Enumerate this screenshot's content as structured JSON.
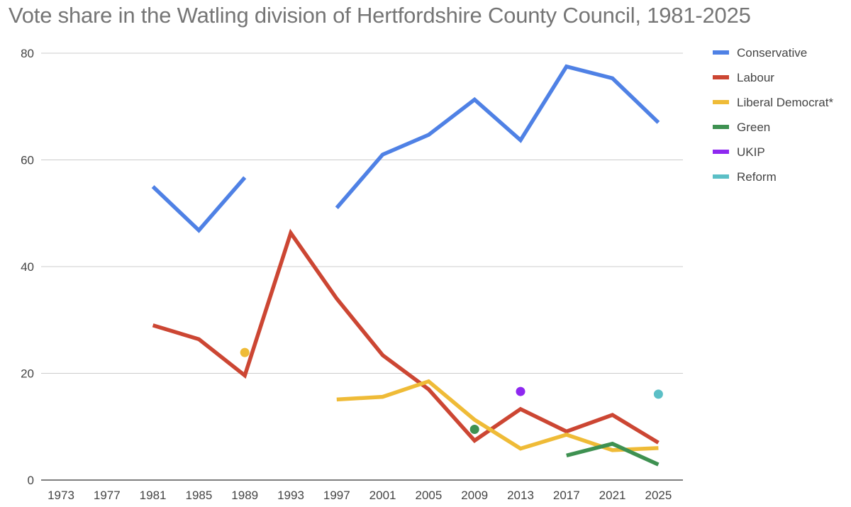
{
  "chart_data": {
    "type": "line",
    "title": "Vote share in the Watling division of Hertfordshire County Council, 1981-2025",
    "xlabel": "",
    "ylabel": "",
    "categories": [
      "1973",
      "1977",
      "1981",
      "1985",
      "1989",
      "1993",
      "1997",
      "2001",
      "2005",
      "2009",
      "2013",
      "2017",
      "2021",
      "2025"
    ],
    "ylim": [
      0,
      80
    ],
    "yticks": [
      0,
      20,
      40,
      60,
      80
    ],
    "grid": true,
    "legend_position": "right",
    "series": [
      {
        "name": "Conservative",
        "color": "#4f81e5",
        "values": [
          null,
          null,
          55,
          46.8,
          56.7,
          null,
          51,
          61,
          64.7,
          71.3,
          63.7,
          77.5,
          75.3,
          67
        ]
      },
      {
        "name": "Labour",
        "color": "#cc4633",
        "values": [
          null,
          null,
          29,
          26.4,
          19.6,
          46.3,
          34,
          23.4,
          17,
          7.4,
          13.3,
          9.1,
          12.2,
          7
        ]
      },
      {
        "name": "Liberal Democrat*",
        "color": "#efbb37",
        "values": [
          null,
          null,
          null,
          null,
          23.9,
          null,
          15.1,
          15.6,
          18.5,
          11.3,
          5.9,
          8.5,
          5.6,
          6
        ]
      },
      {
        "name": "Green",
        "color": "#3e9151",
        "values": [
          null,
          null,
          null,
          null,
          null,
          null,
          null,
          null,
          null,
          9.5,
          null,
          4.6,
          6.8,
          2.9
        ]
      },
      {
        "name": "UKIP",
        "color": "#8e28f0",
        "values": [
          null,
          null,
          null,
          null,
          null,
          null,
          null,
          null,
          null,
          null,
          16.6,
          null,
          null,
          null
        ]
      },
      {
        "name": "Reform",
        "color": "#5bbfc6",
        "values": [
          null,
          null,
          null,
          null,
          null,
          null,
          null,
          null,
          null,
          null,
          null,
          null,
          null,
          16.1
        ]
      }
    ]
  }
}
